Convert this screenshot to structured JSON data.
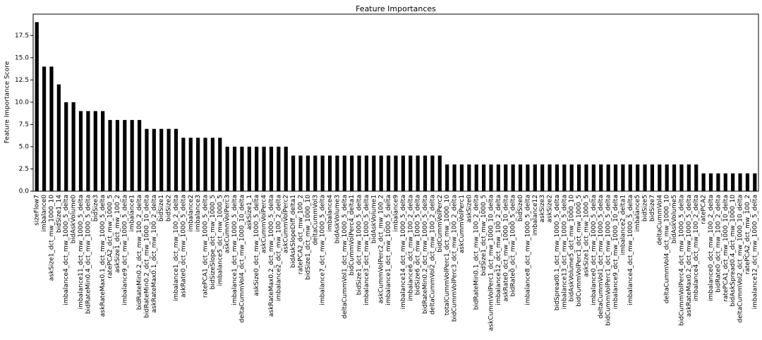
{
  "chart_data": {
    "type": "bar",
    "title": "Feature Importances",
    "y_label": "Feature Importance Score",
    "color": "#000000",
    "categories": [
      "sizeFlow7",
      "imbalance0",
      "askSize1_dct_mw_1000_10",
      "bidSize1_14",
      "imbalance4_dct_mw_1000_5_delta",
      "bidAskVolume0",
      "imbalance11_dct_mw_1000_5_delta",
      "bidRateMin0.4_dct_mw_1000_5_delta",
      "bidSize3",
      "askRateMax0.1_dct_mw_1000_5_delta",
      "ratePCA2_dct_mw_1000_5",
      "askSize1_dct_mw_100_2",
      "imbalance9_dct_mw_1000_5_delta",
      "imbalance1",
      "bidRateMin0.2_dct_mw_100_2_delta",
      "bidRateMin0.2_dct_mw_1000_10_delta",
      "askRateMax0.1_dct_mw_100_2_delta",
      "bidSize1",
      "bidSize2",
      "imbalance1_dct_mw_100_2_delta",
      "askRate0_dct_mw_1000_5_delta",
      "imbalance2",
      "imbalance3",
      "ratePCA1_dct_mw_1000_5_delta",
      "bidSizeSlope_dct_mw_1000_5",
      "imbalance5_dct_mw_1000_5",
      "askCummVolPerc3",
      "imbalance1_dct_mw_1000_5_delta",
      "deltaCummVol4_dct_mw_1000_10_delta",
      "askSize1_1",
      "askSize0_dct_mw_1000_5_delta",
      "askCummVolPerc4",
      "askRateMax0.2_dct_mw_1000_5_delta",
      "imbalance2_dct_mw_100_2_delta",
      "askCummVolPerc2",
      "bidAskSlopeDiff_delta1",
      "ratePCA2_dct_mw_100_2",
      "bidSize1_dct_mw_1000_10",
      "deltaCummVol3",
      "imbalance7_dct_mw_1000_5_delta",
      "imbalance4",
      "bidAskVolume3",
      "deltaCummVol1_dct_mw_1000_5_delta",
      "bidCummVolPerc4_delta1",
      "bidSize1_dct_mw_1000_5_delta",
      "imbalance3_dct_mw_1000_5_delta",
      "bidAskVolume1",
      "askCummVolPerc2_dct_mw_100_2",
      "imbalance1_dct_mw_1000_5_delta",
      "imbalance9",
      "imbalance14_dct_mw_1000_5_delta",
      "imbalance6_dct_mw_100_2_delta",
      "bidSize6_dct_mw_1000_5_delta",
      "bidRateMin0.2_dct_mw_1000_5_delta",
      "deltaCummVol2_dct_mw_100_2_delta",
      "bidCummVolPerc2",
      "totalCummVolPerc1_dct_mw_1000_10",
      "bidCummVolPerc3_dct_mw_100_2_delta",
      "askCummVolPerc1",
      "askSize0",
      "bidRateMin0.1_dct_mw_100_2_delta",
      "bidSize1_dct_mw_1000_5",
      "askCummVolPerc1_dct_mw_1000_10_delta",
      "imbalance12_dct_mw_100_2_delta",
      "askRate0_dct_mw_1000_10_delta",
      "bidRate0_dct_mw_1000_5_delta",
      "bidSize0",
      "imbalance8_dct_mw_1000_5_delta",
      "imbalance12",
      "askSize3",
      "askSize2",
      "bidSpread0.1_dct_mw_1000_5_delta",
      "imbalance13_dct_mw_1000_5_delta",
      "bidAskVolume5_dct_mw_1000_10",
      "bidCummVolPerc1_dct_mw_1000_5",
      "askSize1_dct_mw_1000_5",
      "imbalance0_dct_mw_1000_5_delta",
      "deltaCummVol1_dct_mw_1000_5_delta",
      "bidCummVolPerc1_dct_mw_1000_5_delta",
      "imbalance9_dct_mw_1000_10_delta",
      "imbalance2_delta1",
      "imbalance4_dct_mw_1000_5_delta",
      "imbalance5",
      "bidSize5",
      "bidSize7",
      "deltaCummVol4",
      "deltaCummVol4_dct_mw_1000_10",
      "bidAskVolume5",
      "bidCummVolPerc4_dct_mw_1000_5_delta",
      "askRateMax0.2_dct_mw_1000_5_delta",
      "imbalance4_dct_mw_100_2_delta",
      "ratePCA2",
      "imbalance0_dct_mw_100_2_delta",
      "bidRate0_dct_mw_100_2_delta",
      "ratePCA1_dct_mw_1000_10_delta",
      "bidAskSpread0.4_dct_mw_1000_10",
      "deltaCummVol2_dct_mw_1000_10_delta",
      "ratePCA2_dct_mw_100_2",
      "imbalance12_dct_mw_1000_5_delta"
    ],
    "values": [
      19,
      14,
      14,
      12,
      10,
      10,
      9,
      9,
      9,
      9,
      8,
      8,
      8,
      8,
      8,
      7,
      7,
      7,
      7,
      7,
      6,
      6,
      6,
      6,
      6,
      6,
      5,
      5,
      5,
      5,
      5,
      5,
      5,
      5,
      5,
      4,
      4,
      4,
      4,
      4,
      4,
      4,
      4,
      4,
      4,
      4,
      4,
      4,
      4,
      4,
      4,
      4,
      4,
      4,
      4,
      4,
      3,
      3,
      3,
      3,
      3,
      3,
      3,
      3,
      3,
      3,
      3,
      3,
      3,
      3,
      3,
      3,
      3,
      3,
      3,
      3,
      3,
      3,
      3,
      3,
      3,
      3,
      3,
      3,
      3,
      3,
      3,
      3,
      3,
      3,
      3,
      2,
      2,
      2,
      2,
      2,
      2,
      2,
      2
    ],
    "ylim": [
      0,
      19.9
    ],
    "yticks": [
      {
        "value": 0,
        "label": "0.0"
      },
      {
        "value": 2.5,
        "label": "2.5"
      },
      {
        "value": 5,
        "label": "5.0"
      },
      {
        "value": 7.5,
        "label": "7.5"
      },
      {
        "value": 10,
        "label": "10.0"
      },
      {
        "value": 12.5,
        "label": "12.5"
      },
      {
        "value": 15,
        "label": "15.0"
      },
      {
        "value": 17.5,
        "label": "17.5"
      }
    ]
  }
}
